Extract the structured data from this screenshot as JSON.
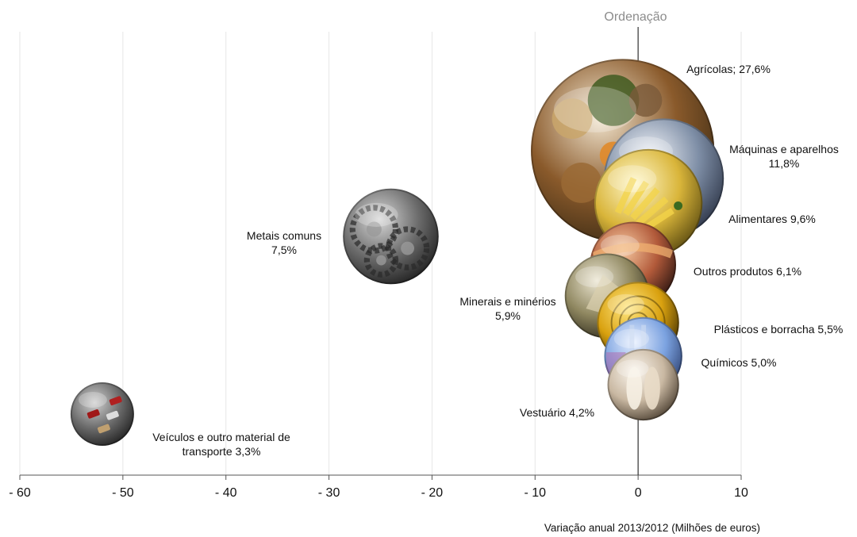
{
  "chart_data": {
    "type": "scatter",
    "title": "Ordenação",
    "xlabel": "Variação anual 2013/2012 (Milhões de euros)",
    "ylabel": "",
    "xlim": [
      -60,
      10
    ],
    "xticks": [
      "- 60",
      "- 50",
      "- 40",
      "- 30",
      "- 20",
      "- 10",
      "0",
      "10"
    ],
    "grid": "vertical",
    "points": [
      {
        "name": "Agrícolas",
        "share_pct": 27.6,
        "x": -1.5,
        "label": [
          "Agrícolas; 27,6%"
        ],
        "theme": "produce"
      },
      {
        "name": "Máquinas e aparelhos",
        "share_pct": 11.8,
        "x": 2.5,
        "label": [
          "Máquinas e aparelhos",
          "11,8%"
        ],
        "theme": "machine"
      },
      {
        "name": "Alimentares",
        "share_pct": 9.6,
        "x": 1.0,
        "label": [
          "Alimentares 9,6%"
        ],
        "theme": "food"
      },
      {
        "name": "Metais comuns",
        "share_pct": 7.5,
        "x": -24.0,
        "label": [
          "Metais comuns",
          "7,5%"
        ],
        "theme": "gears"
      },
      {
        "name": "Outros produtos",
        "share_pct": 6.1,
        "x": -0.5,
        "label": [
          "Outros produtos 6,1%"
        ],
        "theme": "other"
      },
      {
        "name": "Minerais e minérios",
        "share_pct": 5.9,
        "x": -3.0,
        "label": [
          "Minerais e minérios",
          "5,9%"
        ],
        "theme": "minerals"
      },
      {
        "name": "Plásticos e borracha",
        "share_pct": 5.5,
        "x": 0.0,
        "label": [
          "Plásticos e borracha 5,5%"
        ],
        "theme": "plastics"
      },
      {
        "name": "Químicos",
        "share_pct": 5.0,
        "x": 0.5,
        "label": [
          "Químicos 5,0%"
        ],
        "theme": "chemicals"
      },
      {
        "name": "Vestuário",
        "share_pct": 4.2,
        "x": 0.5,
        "label": [
          "Vestuário 4,2%"
        ],
        "theme": "clothing"
      },
      {
        "name": "Veículos e outro material de transporte",
        "share_pct": 3.3,
        "x": -52.0,
        "label": [
          "Veículos e outro material de",
          "transporte 3,3%"
        ],
        "theme": "vehicles"
      }
    ]
  },
  "colors": {
    "produce": [
      "#f2e6d0",
      "#8a5a2b",
      "#3a2a14"
    ],
    "machine": [
      "#f4f6fa",
      "#7e8ea6",
      "#2c3446"
    ],
    "food": [
      "#fff7c8",
      "#d9b53a",
      "#5a4a10"
    ],
    "gears": [
      "#d8d8d8",
      "#6b6b6b",
      "#1e1e1e"
    ],
    "other": [
      "#f6c9a0",
      "#b25a3a",
      "#2a1410"
    ],
    "minerals": [
      "#ece6d2",
      "#8f8760",
      "#2e2a1c"
    ],
    "plastics": [
      "#ffe680",
      "#d9a10f",
      "#3a2a00"
    ],
    "chemicals": [
      "#e8f0ff",
      "#7ba2e0",
      "#2c3f6e"
    ],
    "clothing": [
      "#fbf6ee",
      "#c9b8a2",
      "#4a3e30"
    ],
    "vehicles": [
      "#cfcfcf",
      "#6a6a6a",
      "#202020"
    ],
    "zero_line": "#333333",
    "grid": "#e6e6e6"
  }
}
